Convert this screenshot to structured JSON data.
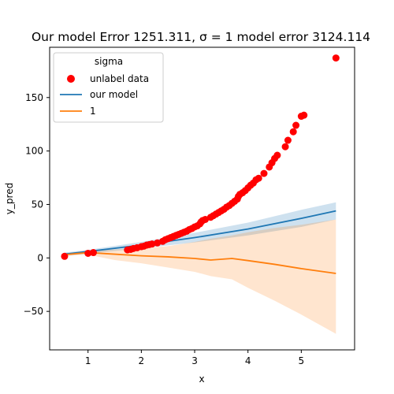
{
  "chart_data": {
    "type": "scatter",
    "title": "Our model Error 1251.311, σ = 1 model error 3124.114",
    "xlabel": "x",
    "ylabel": "y_pred",
    "xlim": [
      0.28,
      6.0
    ],
    "ylim": [
      -86,
      197
    ],
    "x_ticks": [
      1,
      2,
      3,
      4,
      5
    ],
    "y_ticks": [
      -50,
      0,
      50,
      100,
      150
    ],
    "grid": false,
    "legend": {
      "title": "sigma",
      "placement": "top-left",
      "entries": [
        {
          "label": "unlabel data",
          "kind": "marker",
          "color": "#ff0000"
        },
        {
          "label": "our model",
          "kind": "line",
          "color": "#1f77b4"
        },
        {
          "label": "1",
          "kind": "line",
          "color": "#ff7f0e"
        }
      ]
    },
    "scatter": {
      "name": "unlabel data",
      "color": "#ff0000",
      "points": [
        [
          0.56,
          1.5
        ],
        [
          1.0,
          4.3
        ],
        [
          1.1,
          5.0
        ],
        [
          1.74,
          7.5
        ],
        [
          1.8,
          8.0
        ],
        [
          1.85,
          8.8
        ],
        [
          1.92,
          9.5
        ],
        [
          2.0,
          10.5
        ],
        [
          2.05,
          11.0
        ],
        [
          2.1,
          12.0
        ],
        [
          2.15,
          12.5
        ],
        [
          2.2,
          13.0
        ],
        [
          2.3,
          14.0
        ],
        [
          2.4,
          15.5
        ],
        [
          2.45,
          17.0
        ],
        [
          2.5,
          18.0
        ],
        [
          2.55,
          19.0
        ],
        [
          2.6,
          20.0
        ],
        [
          2.65,
          21.0
        ],
        [
          2.7,
          22.0
        ],
        [
          2.75,
          23.0
        ],
        [
          2.8,
          24.0
        ],
        [
          2.85,
          25.0
        ],
        [
          2.9,
          26.5
        ],
        [
          2.95,
          27.5
        ],
        [
          3.0,
          29.0
        ],
        [
          3.05,
          30.0
        ],
        [
          3.1,
          32.0
        ],
        [
          3.12,
          33.5
        ],
        [
          3.15,
          35.0
        ],
        [
          3.2,
          36.0
        ],
        [
          3.3,
          38.0
        ],
        [
          3.35,
          39.5
        ],
        [
          3.4,
          41.0
        ],
        [
          3.45,
          42.5
        ],
        [
          3.5,
          44.0
        ],
        [
          3.55,
          45.5
        ],
        [
          3.6,
          47.5
        ],
        [
          3.65,
          49.0
        ],
        [
          3.7,
          51.0
        ],
        [
          3.75,
          53.0
        ],
        [
          3.8,
          55.0
        ],
        [
          3.82,
          57.5
        ],
        [
          3.85,
          59.5
        ],
        [
          3.9,
          61.0
        ],
        [
          3.95,
          63.0
        ],
        [
          4.0,
          65.5
        ],
        [
          4.05,
          68.0
        ],
        [
          4.1,
          70.0
        ],
        [
          4.15,
          73.0
        ],
        [
          4.2,
          74.5
        ],
        [
          4.3,
          79.0
        ],
        [
          4.4,
          85.0
        ],
        [
          4.45,
          89.0
        ],
        [
          4.5,
          93.0
        ],
        [
          4.55,
          96.0
        ],
        [
          4.7,
          104.0
        ],
        [
          4.75,
          110.0
        ],
        [
          4.85,
          118.0
        ],
        [
          4.9,
          124.0
        ],
        [
          5.0,
          132.5
        ],
        [
          5.05,
          133.5
        ],
        [
          5.65,
          187.0
        ]
      ]
    },
    "series": [
      {
        "name": "our model",
        "color": "#1f77b4",
        "x": [
          0.56,
          1.0,
          2.0,
          3.0,
          4.0,
          5.0,
          5.65
        ],
        "y": [
          3.5,
          6.0,
          12.0,
          19.0,
          27.0,
          37.0,
          44.0
        ],
        "lower": [
          2.0,
          4.0,
          9.0,
          14.5,
          21.0,
          29.0,
          36.0
        ],
        "upper": [
          5.0,
          7.5,
          15.0,
          23.5,
          33.0,
          45.0,
          52.0
        ]
      },
      {
        "name": "1",
        "color": "#ff7f0e",
        "x": [
          0.56,
          1.0,
          1.5,
          2.0,
          2.5,
          3.0,
          3.3,
          3.7,
          4.0,
          4.5,
          5.0,
          5.65
        ],
        "y": [
          3.0,
          5.0,
          3.5,
          2.0,
          1.0,
          -0.5,
          -2.0,
          -0.5,
          -2.5,
          -6.0,
          -10.0,
          -14.5
        ],
        "lower": [
          2.0,
          3.0,
          -2.0,
          -5.0,
          -9.0,
          -13.0,
          -17.0,
          -20.0,
          -28.0,
          -40.0,
          -53.0,
          -71.0
        ],
        "upper": [
          4.0,
          7.0,
          8.0,
          9.0,
          11.0,
          15.0,
          18.0,
          21.0,
          24.0,
          28.0,
          31.0,
          36.0
        ]
      }
    ]
  }
}
